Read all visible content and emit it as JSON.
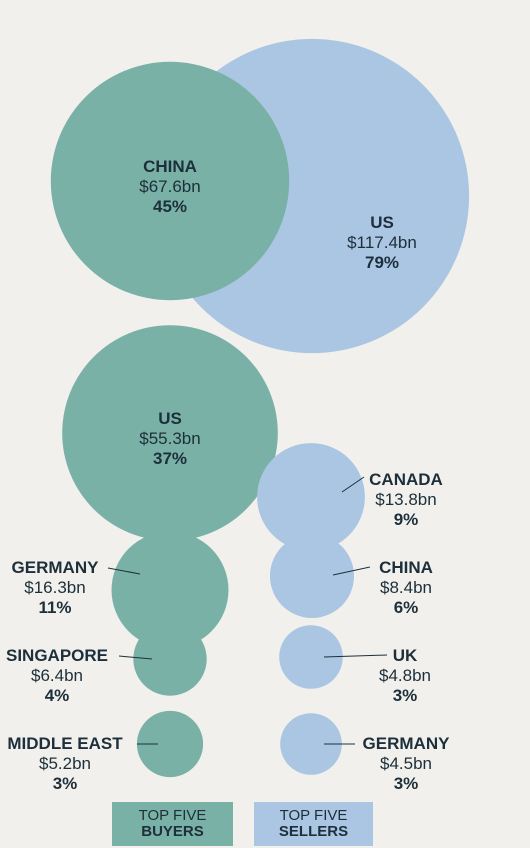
{
  "colors": {
    "buyers": "#7ab1a6",
    "sellers": "#aac6e3",
    "text": "#1d2f3a",
    "background": "#f1f0ec"
  },
  "legend": {
    "buyers": {
      "line1": "TOP FIVE",
      "line2": "BUYERS"
    },
    "sellers": {
      "line1": "TOP FIVE",
      "line2": "SELLERS"
    }
  },
  "chart_data": {
    "type": "bubble",
    "series": [
      {
        "name": "TOP FIVE BUYERS",
        "points": [
          {
            "label": "CHINA",
            "value": "$67.6bn",
            "share": "45%",
            "amount_bn": 67.6
          },
          {
            "label": "US",
            "value": "$55.3bn",
            "share": "37%",
            "amount_bn": 55.3
          },
          {
            "label": "GERMANY",
            "value": "$16.3bn",
            "share": "11%",
            "amount_bn": 16.3
          },
          {
            "label": "SINGAPORE",
            "value": "$6.4bn",
            "share": "4%",
            "amount_bn": 6.4
          },
          {
            "label": "MIDDLE EAST",
            "value": "$5.2bn",
            "share": "3%",
            "amount_bn": 5.2
          }
        ]
      },
      {
        "name": "TOP FIVE SELLERS",
        "points": [
          {
            "label": "US",
            "value": "$117.4bn",
            "share": "79%",
            "amount_bn": 117.4
          },
          {
            "label": "CANADA",
            "value": "$13.8bn",
            "share": "9%",
            "amount_bn": 13.8
          },
          {
            "label": "CHINA",
            "value": "$8.4bn",
            "share": "6%",
            "amount_bn": 8.4
          },
          {
            "label": "UK",
            "value": "$4.8bn",
            "share": "3%",
            "amount_bn": 4.8
          },
          {
            "label": "GERMANY",
            "value": "$4.5bn",
            "share": "3%",
            "amount_bn": 4.5
          }
        ]
      }
    ]
  }
}
